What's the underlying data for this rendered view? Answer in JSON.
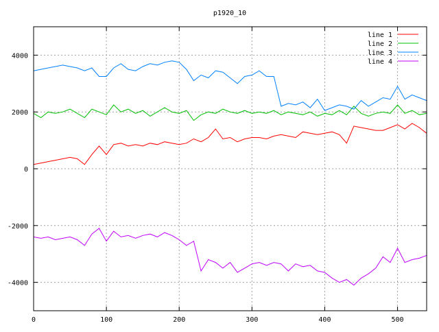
{
  "chart_data": {
    "type": "line",
    "title": "p1920_10",
    "xlabel": "",
    "ylabel": "",
    "xlim": [
      0,
      540
    ],
    "ylim": [
      -5000,
      5000
    ],
    "xticks": [
      0,
      100,
      200,
      300,
      400,
      500
    ],
    "yticks": [
      -4000,
      -2000,
      0,
      2000,
      4000
    ],
    "grid": true,
    "legend_position": "top-right",
    "x": [
      0,
      10,
      20,
      30,
      40,
      50,
      60,
      70,
      80,
      90,
      100,
      110,
      120,
      130,
      140,
      150,
      160,
      170,
      180,
      190,
      200,
      210,
      220,
      230,
      240,
      250,
      260,
      270,
      280,
      290,
      300,
      310,
      320,
      330,
      340,
      350,
      360,
      370,
      380,
      390,
      400,
      410,
      420,
      430,
      440,
      450,
      460,
      470,
      480,
      490,
      500,
      510,
      520,
      530,
      540
    ],
    "series": [
      {
        "name": "line 1",
        "color": "#ff0000",
        "values": [
          150,
          200,
          250,
          300,
          350,
          400,
          350,
          150,
          500,
          800,
          500,
          850,
          900,
          800,
          850,
          800,
          900,
          850,
          950,
          900,
          850,
          900,
          1050,
          950,
          1100,
          1400,
          1050,
          1100,
          950,
          1050,
          1100,
          1100,
          1050,
          1150,
          1200,
          1150,
          1100,
          1300,
          1250,
          1200,
          1250,
          1300,
          1200,
          900,
          1500,
          1450,
          1400,
          1350,
          1350,
          1450,
          1550,
          1400,
          1600,
          1450,
          1250
        ]
      },
      {
        "name": "line 2",
        "color": "#00c000",
        "values": [
          1950,
          1800,
          2000,
          1950,
          2000,
          2100,
          1950,
          1800,
          2100,
          2000,
          1900,
          2250,
          2000,
          2100,
          1950,
          2050,
          1850,
          2000,
          2150,
          2000,
          1950,
          2050,
          1700,
          1900,
          2000,
          1950,
          2100,
          2000,
          1950,
          2050,
          1950,
          2000,
          1950,
          2050,
          1900,
          2000,
          1950,
          1900,
          2000,
          1850,
          1950,
          1900,
          2050,
          1900,
          2200,
          1950,
          1850,
          1950,
          2000,
          1950,
          2250,
          1950,
          2050,
          1900,
          1950
        ]
      },
      {
        "name": "line 3",
        "color": "#0080ff",
        "values": [
          3450,
          3500,
          3550,
          3600,
          3650,
          3600,
          3550,
          3450,
          3550,
          3250,
          3250,
          3550,
          3700,
          3500,
          3450,
          3600,
          3700,
          3650,
          3750,
          3800,
          3750,
          3500,
          3100,
          3300,
          3200,
          3450,
          3400,
          3200,
          3000,
          3250,
          3300,
          3450,
          3250,
          3250,
          2200,
          2300,
          2250,
          2350,
          2150,
          2450,
          2050,
          2150,
          2250,
          2200,
          2100,
          2400,
          2200,
          2350,
          2500,
          2450,
          2900,
          2450,
          2600,
          2500,
          2400
        ]
      },
      {
        "name": "line 4",
        "color": "#c000ff",
        "values": [
          -2400,
          -2450,
          -2400,
          -2500,
          -2450,
          -2400,
          -2500,
          -2700,
          -2300,
          -2100,
          -2550,
          -2200,
          -2400,
          -2350,
          -2450,
          -2350,
          -2300,
          -2400,
          -2250,
          -2350,
          -2500,
          -2700,
          -2550,
          -3600,
          -3200,
          -3300,
          -3500,
          -3300,
          -3650,
          -3500,
          -3350,
          -3300,
          -3400,
          -3300,
          -3350,
          -3600,
          -3350,
          -3450,
          -3400,
          -3600,
          -3650,
          -3850,
          -4000,
          -3900,
          -4100,
          -3850,
          -3700,
          -3500,
          -3100,
          -3300,
          -2800,
          -3300,
          -3200,
          -3150,
          -3050
        ]
      }
    ]
  }
}
